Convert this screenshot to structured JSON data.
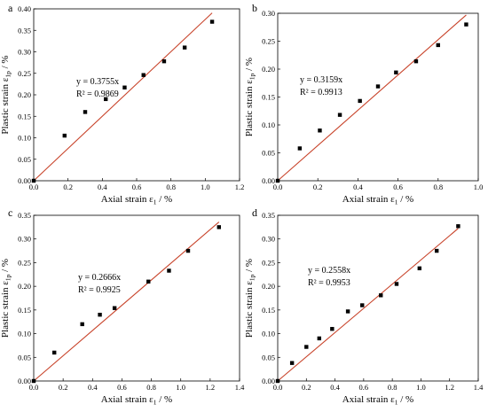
{
  "colors": {
    "points": "#000000",
    "fit_line": "#c8432a",
    "axes": "#000000"
  },
  "chart_data": [
    {
      "type": "scatter",
      "panel_label": "a",
      "xlabel": {
        "main": "Axial strain ε",
        "sub": "1",
        "tail": " / %"
      },
      "ylabel": {
        "main": "Plastic strain ε",
        "sub": "1p",
        "tail": " / %"
      },
      "xlim": [
        0,
        1.2
      ],
      "ylim": [
        0,
        0.4
      ],
      "xticks": [
        "0.0",
        "0.2",
        "0.4",
        "0.6",
        "0.8",
        "1.0",
        "1.2"
      ],
      "yticks": [
        "0.00",
        "0.05",
        "0.10",
        "0.15",
        "0.20",
        "0.25",
        "0.30",
        "0.35",
        "0.40"
      ],
      "x": [
        0.0,
        0.18,
        0.3,
        0.42,
        0.53,
        0.64,
        0.76,
        0.88,
        1.04
      ],
      "y": [
        0.0,
        0.105,
        0.16,
        0.19,
        0.217,
        0.246,
        0.278,
        0.31,
        0.37
      ],
      "fit": {
        "slope": 0.3755,
        "x_end": 1.04
      },
      "equation": "y = 0.3755x",
      "r2": "R² = 0.9869"
    },
    {
      "type": "scatter",
      "panel_label": "b",
      "xlabel": {
        "main": "Axial strain ε",
        "sub": "1",
        "tail": " / %"
      },
      "ylabel": {
        "main": "Plastic strain ε",
        "sub": "1p",
        "tail": " / %"
      },
      "xlim": [
        0,
        1.0
      ],
      "ylim": [
        0,
        0.3
      ],
      "xticks": [
        "0.0",
        "0.2",
        "0.4",
        "0.6",
        "0.8",
        "1.0"
      ],
      "yticks": [
        "0.00",
        "0.05",
        "0.10",
        "0.15",
        "0.20",
        "0.25",
        "0.30"
      ],
      "x": [
        0.0,
        0.11,
        0.21,
        0.31,
        0.41,
        0.5,
        0.59,
        0.69,
        0.8,
        0.94
      ],
      "y": [
        0.0,
        0.058,
        0.09,
        0.118,
        0.143,
        0.169,
        0.194,
        0.214,
        0.243,
        0.28
      ],
      "fit": {
        "slope": 0.3159,
        "x_end": 0.94
      },
      "equation": "y = 0.3159x",
      "r2": "R² = 0.9913"
    },
    {
      "type": "scatter",
      "panel_label": "c",
      "xlabel": {
        "main": "Axial strain ε",
        "sub": "1",
        "tail": " / %"
      },
      "ylabel": {
        "main": "Plastic strain ε",
        "sub": "1p",
        "tail": " / %"
      },
      "xlim": [
        0,
        1.4
      ],
      "ylim": [
        0,
        0.35
      ],
      "xticks": [
        "0.0",
        "0.2",
        "0.4",
        "0.6",
        "0.8",
        "1.0",
        "1.2",
        "1.4"
      ],
      "yticks": [
        "0.00",
        "0.05",
        "0.10",
        "0.15",
        "0.20",
        "0.25",
        "0.30",
        "0.35"
      ],
      "x": [
        0.0,
        0.14,
        0.33,
        0.45,
        0.55,
        0.78,
        0.92,
        1.05,
        1.26
      ],
      "y": [
        0.0,
        0.06,
        0.12,
        0.14,
        0.154,
        0.21,
        0.233,
        0.275,
        0.325
      ],
      "fit": {
        "slope": 0.2666,
        "x_end": 1.26
      },
      "equation": "y = 0.2666x",
      "r2": "R² = 0.9925"
    },
    {
      "type": "scatter",
      "panel_label": "d",
      "xlabel": {
        "main": "Axial strain ε",
        "sub": "1",
        "tail": " / %"
      },
      "ylabel": {
        "main": "Plastic strain ε",
        "sub": "1p",
        "tail": " / %"
      },
      "xlim": [
        0,
        1.4
      ],
      "ylim": [
        0,
        0.35
      ],
      "xticks": [
        "0.0",
        "0.2",
        "0.4",
        "0.6",
        "0.8",
        "1.0",
        "1.2",
        "1.4"
      ],
      "yticks": [
        "0.00",
        "0.05",
        "0.10",
        "0.15",
        "0.20",
        "0.25",
        "0.30",
        "0.35"
      ],
      "x": [
        0.0,
        0.1,
        0.2,
        0.29,
        0.38,
        0.49,
        0.59,
        0.72,
        0.83,
        0.99,
        1.11,
        1.26
      ],
      "y": [
        0.0,
        0.038,
        0.072,
        0.09,
        0.11,
        0.147,
        0.16,
        0.181,
        0.205,
        0.238,
        0.275,
        0.327
      ],
      "fit": {
        "slope": 0.2558,
        "x_end": 1.26
      },
      "equation": "y = 0.2558x",
      "r2": "R² = 0.9953"
    }
  ]
}
